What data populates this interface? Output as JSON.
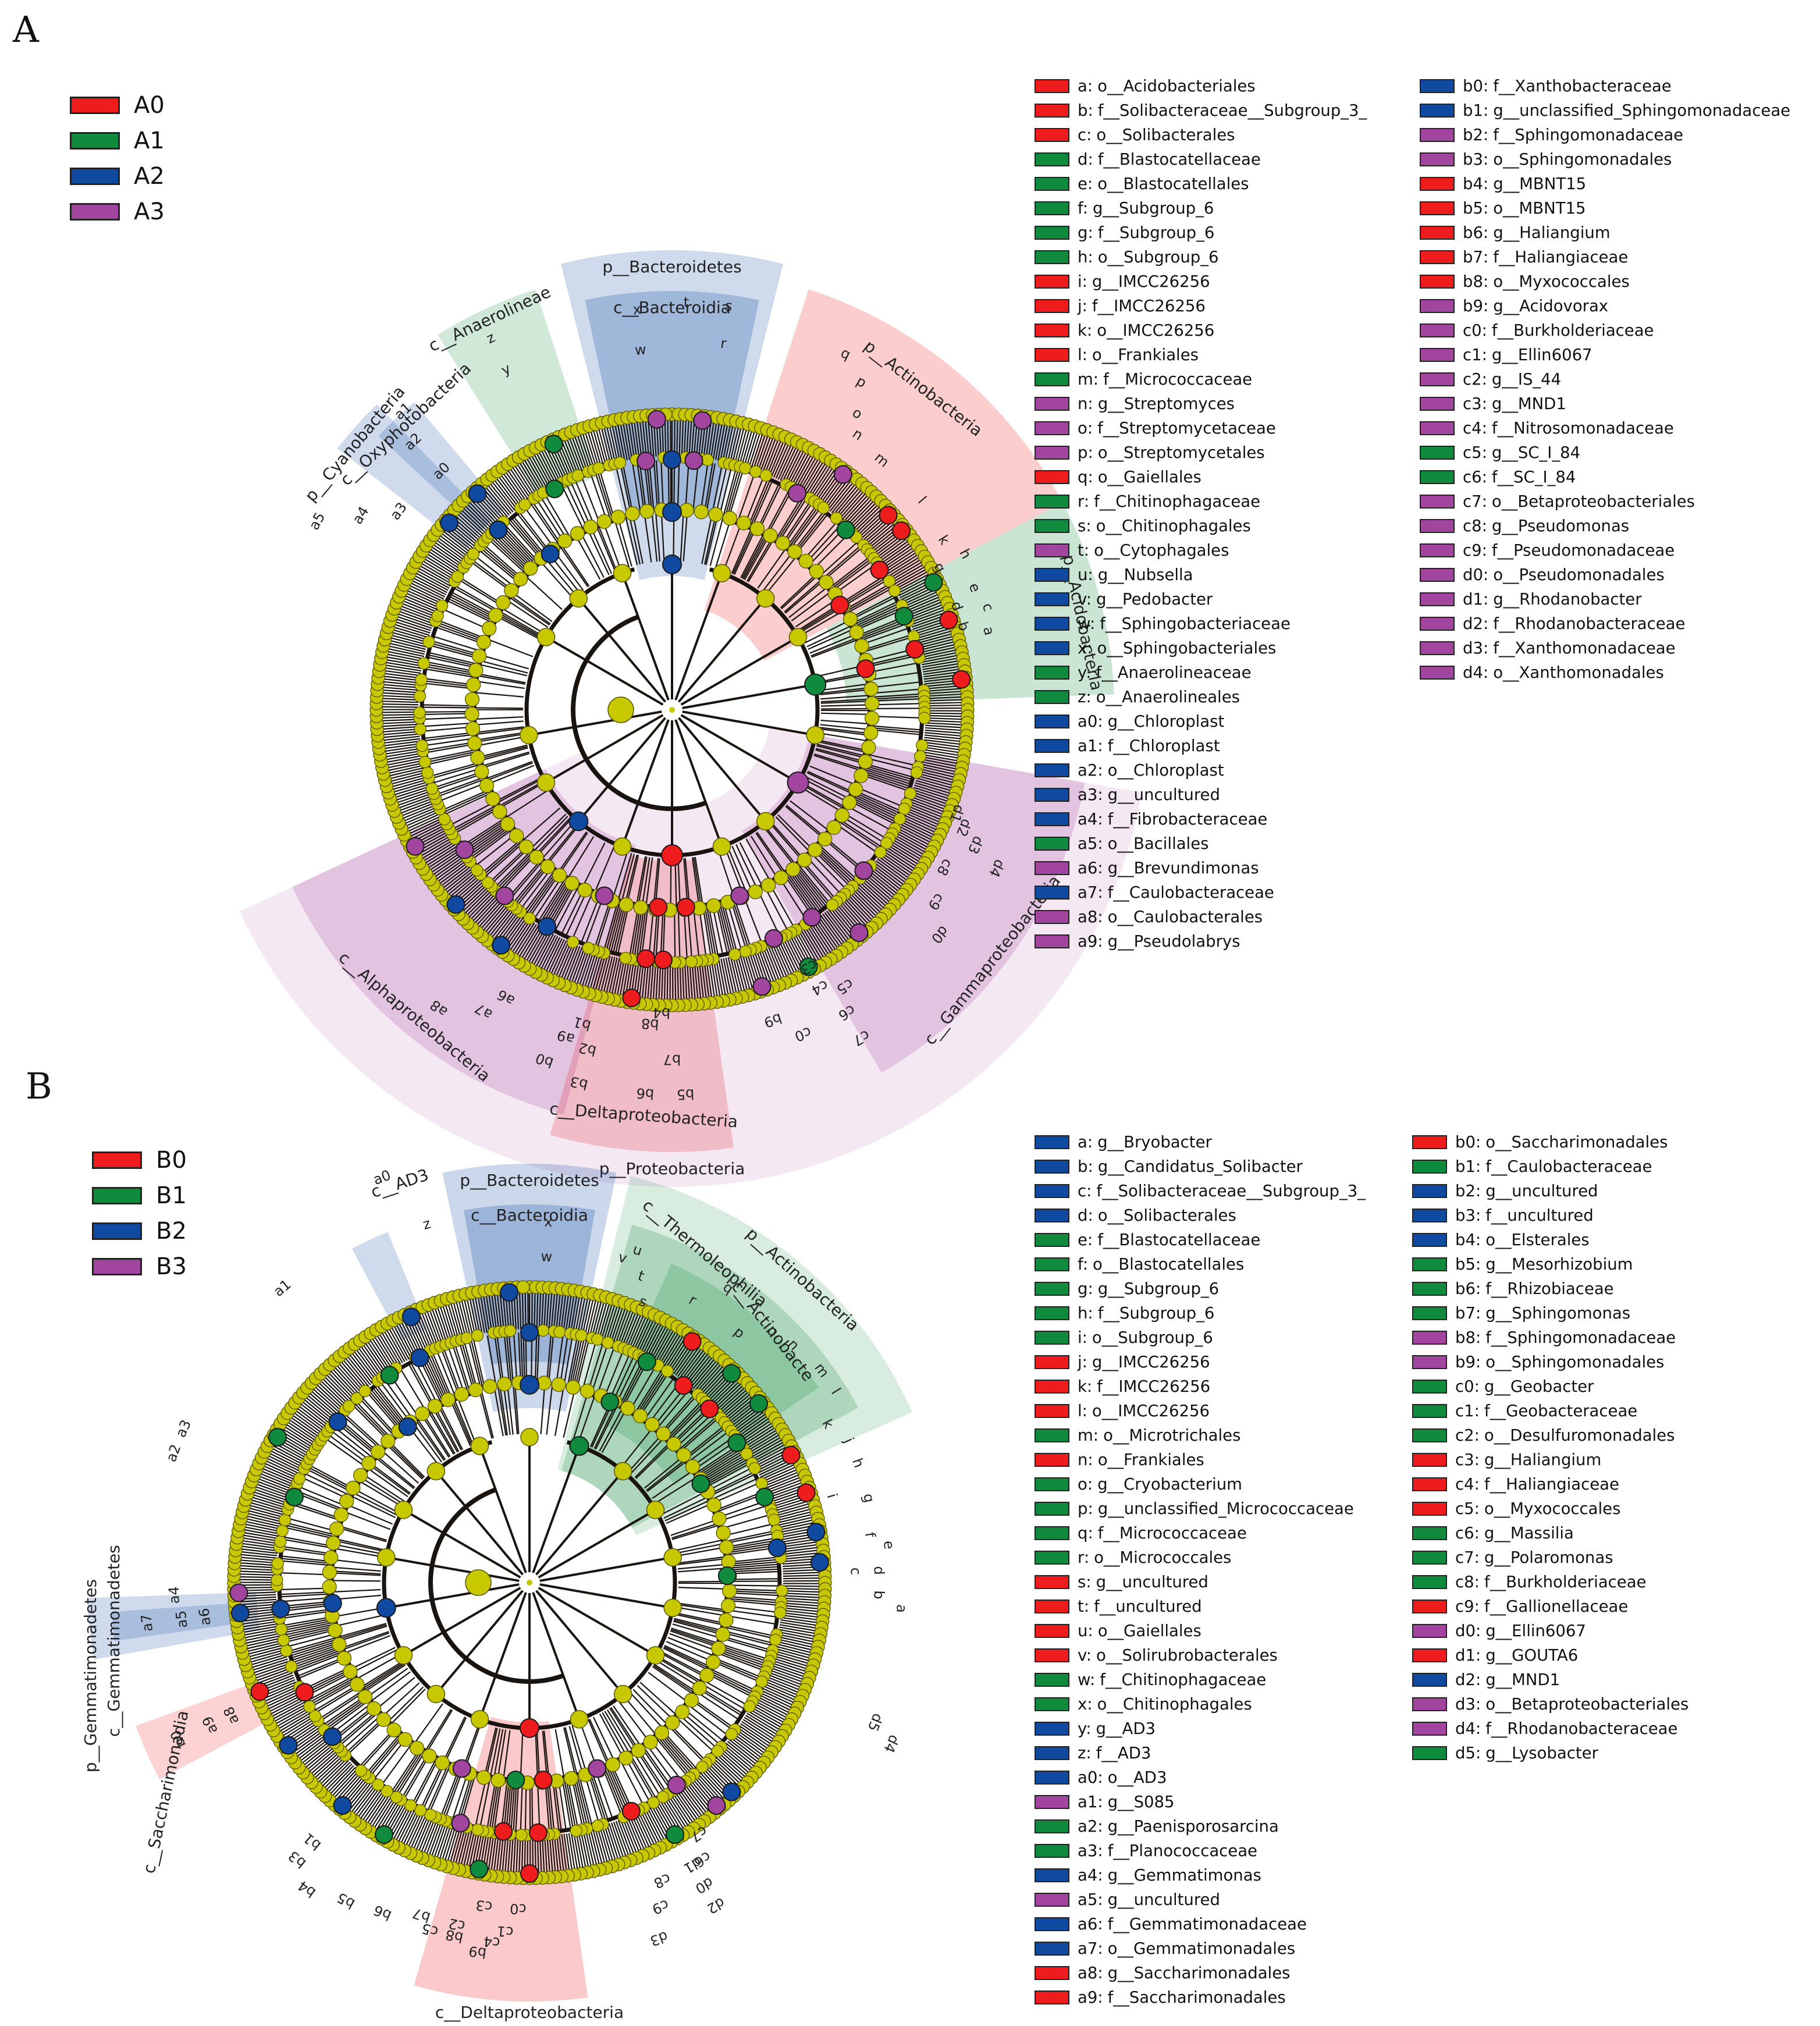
{
  "colors": {
    "A0": "#ee1c1c",
    "A1": "#108a3c",
    "A2": "#104aa0",
    "A3": "#a2459e",
    "node": "#c8c800",
    "branch": "#1a1410"
  },
  "panelA": {
    "letter": "A",
    "groups": [
      {
        "label": "A0",
        "color": "#ee1c1c"
      },
      {
        "label": "A1",
        "color": "#108a3c"
      },
      {
        "label": "A2",
        "color": "#104aa0"
      },
      {
        "label": "A3",
        "color": "#a2459e"
      }
    ],
    "highlights": [
      {
        "label": "p__Bacteroidetes",
        "color": "#104aa0"
      },
      {
        "label": "c__Bacteroidia",
        "color": "#104aa0"
      },
      {
        "label": "c__Anaerolineae",
        "color": "#108a3c"
      },
      {
        "label": "p__Cyanobacteria",
        "color": "#104aa0"
      },
      {
        "label": "c__Oxyphotobacteria",
        "color": "#104aa0"
      },
      {
        "label": "p__Actinobacteria",
        "color": "#ee1c1c"
      },
      {
        "label": "p__Acidobacteria",
        "color": "#108a3c"
      },
      {
        "label": "c__Gammaproteobacteria",
        "color": "#a2459e"
      },
      {
        "label": "c__Alphaproteobacteria",
        "color": "#a2459e"
      },
      {
        "label": "c__Deltaproteobacteria",
        "color": "#ee1c1c"
      },
      {
        "label": "p__Proteobacteria",
        "color": "#a2459e"
      }
    ],
    "tip_labels": [
      "x",
      "w",
      "t",
      "s",
      "r",
      "z",
      "y",
      "a1",
      "a2",
      "a0",
      "a5",
      "a4",
      "a3",
      "q",
      "p",
      "o",
      "n",
      "m",
      "l",
      "k",
      "h",
      "g",
      "e",
      "d",
      "c",
      "b",
      "a",
      "d4",
      "d3",
      "d2",
      "d1",
      "c8",
      "c9",
      "d0",
      "c5",
      "c6",
      "c4",
      "c3",
      "c7",
      "c0",
      "b9",
      "a6",
      "a7",
      "a8",
      "a9",
      "b0",
      "b1",
      "b2",
      "b3",
      "b8",
      "b4",
      "b7",
      "b5",
      "b6"
    ],
    "legend": [
      [
        {
          "code": "a:",
          "name": "o__Acidobacteriales",
          "color": "#ee1c1c"
        },
        {
          "code": "b:",
          "name": "f__Solibacteraceae__Subgroup_3_",
          "color": "#ee1c1c"
        },
        {
          "code": "c:",
          "name": "o__Solibacterales",
          "color": "#ee1c1c"
        },
        {
          "code": "d:",
          "name": "f__Blastocatellaceae",
          "color": "#108a3c"
        },
        {
          "code": "e:",
          "name": "o__Blastocatellales",
          "color": "#108a3c"
        },
        {
          "code": "f:",
          "name": "g__Subgroup_6",
          "color": "#108a3c"
        },
        {
          "code": "g:",
          "name": "f__Subgroup_6",
          "color": "#108a3c"
        },
        {
          "code": "h:",
          "name": "o__Subgroup_6",
          "color": "#108a3c"
        },
        {
          "code": "i:",
          "name": "g__IMCC26256",
          "color": "#ee1c1c"
        },
        {
          "code": "j:",
          "name": "f__IMCC26256",
          "color": "#ee1c1c"
        },
        {
          "code": "k:",
          "name": "o__IMCC26256",
          "color": "#ee1c1c"
        },
        {
          "code": "l:",
          "name": "o__Frankiales",
          "color": "#ee1c1c"
        },
        {
          "code": "m:",
          "name": "f__Micrococcaceae",
          "color": "#108a3c"
        },
        {
          "code": "n:",
          "name": "g__Streptomyces",
          "color": "#a2459e"
        },
        {
          "code": "o:",
          "name": "f__Streptomycetaceae",
          "color": "#a2459e"
        },
        {
          "code": "p:",
          "name": "o__Streptomycetales",
          "color": "#a2459e"
        },
        {
          "code": "q:",
          "name": "o__Gaiellales",
          "color": "#ee1c1c"
        },
        {
          "code": "r:",
          "name": "f__Chitinophagaceae",
          "color": "#108a3c"
        },
        {
          "code": "s:",
          "name": "o__Chitinophagales",
          "color": "#108a3c"
        },
        {
          "code": "t:",
          "name": "o__Cytophagales",
          "color": "#a2459e"
        },
        {
          "code": "u:",
          "name": "g__Nubsella",
          "color": "#104aa0"
        },
        {
          "code": "v:",
          "name": "g__Pedobacter",
          "color": "#104aa0"
        },
        {
          "code": "w:",
          "name": "f__Sphingobacteriaceae",
          "color": "#104aa0"
        },
        {
          "code": "x:",
          "name": "o__Sphingobacteriales",
          "color": "#104aa0"
        },
        {
          "code": "y:",
          "name": "f__Anaerolineaceae",
          "color": "#108a3c"
        },
        {
          "code": "z:",
          "name": "o__Anaerolineales",
          "color": "#108a3c"
        },
        {
          "code": "a0:",
          "name": "g__Chloroplast",
          "color": "#104aa0"
        },
        {
          "code": "a1:",
          "name": "f__Chloroplast",
          "color": "#104aa0"
        },
        {
          "code": "a2:",
          "name": "o__Chloroplast",
          "color": "#104aa0"
        },
        {
          "code": "a3:",
          "name": "g__uncultured",
          "color": "#104aa0"
        },
        {
          "code": "a4:",
          "name": "f__Fibrobacteraceae",
          "color": "#104aa0"
        },
        {
          "code": "a5:",
          "name": "o__Bacillales",
          "color": "#108a3c"
        },
        {
          "code": "a6:",
          "name": "g__Brevundimonas",
          "color": "#a2459e"
        },
        {
          "code": "a7:",
          "name": "f__Caulobacteraceae",
          "color": "#104aa0"
        },
        {
          "code": "a8:",
          "name": "o__Caulobacterales",
          "color": "#a2459e"
        },
        {
          "code": "a9:",
          "name": "g__Pseudolabrys",
          "color": "#a2459e"
        }
      ],
      [
        {
          "code": "b0:",
          "name": "f__Xanthobacteraceae",
          "color": "#104aa0"
        },
        {
          "code": "b1:",
          "name": "g__unclassified_Sphingomonadaceae",
          "color": "#104aa0"
        },
        {
          "code": "b2:",
          "name": "f__Sphingomonadaceae",
          "color": "#a2459e"
        },
        {
          "code": "b3:",
          "name": "o__Sphingomonadales",
          "color": "#a2459e"
        },
        {
          "code": "b4:",
          "name": "g__MBNT15",
          "color": "#ee1c1c"
        },
        {
          "code": "b5:",
          "name": "o__MBNT15",
          "color": "#ee1c1c"
        },
        {
          "code": "b6:",
          "name": "g__Haliangium",
          "color": "#ee1c1c"
        },
        {
          "code": "b7:",
          "name": "f__Haliangiaceae",
          "color": "#ee1c1c"
        },
        {
          "code": "b8:",
          "name": "o__Myxococcales",
          "color": "#ee1c1c"
        },
        {
          "code": "b9:",
          "name": "g__Acidovorax",
          "color": "#a2459e"
        },
        {
          "code": "c0:",
          "name": "f__Burkholderiaceae",
          "color": "#a2459e"
        },
        {
          "code": "c1:",
          "name": "g__Ellin6067",
          "color": "#a2459e"
        },
        {
          "code": "c2:",
          "name": "g__IS_44",
          "color": "#a2459e"
        },
        {
          "code": "c3:",
          "name": "g__MND1",
          "color": "#a2459e"
        },
        {
          "code": "c4:",
          "name": "f__Nitrosomonadaceae",
          "color": "#a2459e"
        },
        {
          "code": "c5:",
          "name": "g__SC_I_84",
          "color": "#108a3c"
        },
        {
          "code": "c6:",
          "name": "f__SC_I_84",
          "color": "#108a3c"
        },
        {
          "code": "c7:",
          "name": "o__Betaproteobacteriales",
          "color": "#a2459e"
        },
        {
          "code": "c8:",
          "name": "g__Pseudomonas",
          "color": "#a2459e"
        },
        {
          "code": "c9:",
          "name": "f__Pseudomonadaceae",
          "color": "#a2459e"
        },
        {
          "code": "d0:",
          "name": "o__Pseudomonadales",
          "color": "#a2459e"
        },
        {
          "code": "d1:",
          "name": "g__Rhodanobacter",
          "color": "#a2459e"
        },
        {
          "code": "d2:",
          "name": "f__Rhodanobacteraceae",
          "color": "#a2459e"
        },
        {
          "code": "d3:",
          "name": "f__Xanthomonadaceae",
          "color": "#a2459e"
        },
        {
          "code": "d4:",
          "name": "o__Xanthomonadales",
          "color": "#a2459e"
        }
      ]
    ]
  },
  "panelB": {
    "letter": "B",
    "groups": [
      {
        "label": "B0",
        "color": "#ee1c1c"
      },
      {
        "label": "B1",
        "color": "#108a3c"
      },
      {
        "label": "B2",
        "color": "#104aa0"
      },
      {
        "label": "B3",
        "color": "#a2459e"
      }
    ],
    "highlights": [
      {
        "label": "p__Bacteroidetes",
        "color": "#104aa0"
      },
      {
        "label": "c__Bacteroidia",
        "color": "#104aa0"
      },
      {
        "label": "c__AD3",
        "color": "#104aa0"
      },
      {
        "label": "c__Thermoleophilia",
        "color": "#108a3c"
      },
      {
        "label": "c__Actinobacte",
        "color": "#108a3c"
      },
      {
        "label": "p__Actinobacteria",
        "color": "#108a3c"
      },
      {
        "label": "p__Gemmatimonadetes",
        "color": "#104aa0"
      },
      {
        "label": "c__Gemmatimonadetes",
        "color": "#104aa0"
      },
      {
        "label": "c__Saccharimonadia",
        "color": "#ee1c1c"
      },
      {
        "label": "c__Deltaproteobacteria",
        "color": "#ee1c1c"
      }
    ],
    "tip_labels": [
      "x",
      "w",
      "a0",
      "z",
      "a1",
      "v",
      "u",
      "t",
      "s",
      "r",
      "q",
      "p",
      "o",
      "n",
      "m",
      "l",
      "k",
      "j",
      "h",
      "i",
      "g",
      "f",
      "e",
      "c",
      "d",
      "b",
      "a",
      "a3",
      "a2",
      "a6",
      "a5",
      "a7",
      "a4",
      "a8",
      "a9",
      "b0",
      "b1",
      "b3",
      "b4",
      "b5",
      "b6",
      "b7",
      "b8",
      "b9",
      "d5",
      "d4",
      "d1",
      "d0",
      "d2",
      "c6",
      "c8",
      "c9",
      "d3",
      "c0",
      "c1",
      "c4",
      "c3",
      "c2",
      "c5",
      "c7"
    ],
    "legend": [
      [
        {
          "code": "a:",
          "name": "g__Bryobacter",
          "color": "#104aa0"
        },
        {
          "code": "b:",
          "name": "g__Candidatus_Solibacter",
          "color": "#104aa0"
        },
        {
          "code": "c:",
          "name": "f__Solibacteraceae__Subgroup_3_",
          "color": "#104aa0"
        },
        {
          "code": "d:",
          "name": "o__Solibacterales",
          "color": "#104aa0"
        },
        {
          "code": "e:",
          "name": "f__Blastocatellaceae",
          "color": "#108a3c"
        },
        {
          "code": "f:",
          "name": "o__Blastocatellales",
          "color": "#108a3c"
        },
        {
          "code": "g:",
          "name": "g__Subgroup_6",
          "color": "#108a3c"
        },
        {
          "code": "h:",
          "name": "f__Subgroup_6",
          "color": "#108a3c"
        },
        {
          "code": "i:",
          "name": "o__Subgroup_6",
          "color": "#108a3c"
        },
        {
          "code": "j:",
          "name": "g__IMCC26256",
          "color": "#ee1c1c"
        },
        {
          "code": "k:",
          "name": "f__IMCC26256",
          "color": "#ee1c1c"
        },
        {
          "code": "l:",
          "name": "o__IMCC26256",
          "color": "#ee1c1c"
        },
        {
          "code": "m:",
          "name": "o__Microtrichales",
          "color": "#108a3c"
        },
        {
          "code": "n:",
          "name": "o__Frankiales",
          "color": "#ee1c1c"
        },
        {
          "code": "o:",
          "name": "g__Cryobacterium",
          "color": "#108a3c"
        },
        {
          "code": "p:",
          "name": "g__unclassified_Micrococcaceae",
          "color": "#108a3c"
        },
        {
          "code": "q:",
          "name": "f__Micrococcaceae",
          "color": "#108a3c"
        },
        {
          "code": "r:",
          "name": "o__Micrococcales",
          "color": "#108a3c"
        },
        {
          "code": "s:",
          "name": "g__uncultured",
          "color": "#ee1c1c"
        },
        {
          "code": "t:",
          "name": "f__uncultured",
          "color": "#ee1c1c"
        },
        {
          "code": "u:",
          "name": "o__Gaiellales",
          "color": "#ee1c1c"
        },
        {
          "code": "v:",
          "name": "o__Solirubrobacterales",
          "color": "#ee1c1c"
        },
        {
          "code": "w:",
          "name": "f__Chitinophagaceae",
          "color": "#108a3c"
        },
        {
          "code": "x:",
          "name": "o__Chitinophagales",
          "color": "#108a3c"
        },
        {
          "code": "y:",
          "name": "g__AD3",
          "color": "#104aa0"
        },
        {
          "code": "z:",
          "name": "f__AD3",
          "color": "#104aa0"
        },
        {
          "code": "a0:",
          "name": "o__AD3",
          "color": "#104aa0"
        },
        {
          "code": "a1:",
          "name": "g__S085",
          "color": "#a2459e"
        },
        {
          "code": "a2:",
          "name": "g__Paenisporosarcina",
          "color": "#108a3c"
        },
        {
          "code": "a3:",
          "name": "f__Planococcaceae",
          "color": "#108a3c"
        },
        {
          "code": "a4:",
          "name": "g__Gemmatimonas",
          "color": "#104aa0"
        },
        {
          "code": "a5:",
          "name": "g__uncultured",
          "color": "#a2459e"
        },
        {
          "code": "a6:",
          "name": "f__Gemmatimonadaceae",
          "color": "#104aa0"
        },
        {
          "code": "a7:",
          "name": "o__Gemmatimonadales",
          "color": "#104aa0"
        },
        {
          "code": "a8:",
          "name": "g__Saccharimonadales",
          "color": "#ee1c1c"
        },
        {
          "code": "a9:",
          "name": "f__Saccharimonadales",
          "color": "#ee1c1c"
        }
      ],
      [
        {
          "code": "b0:",
          "name": "o__Saccharimonadales",
          "color": "#ee1c1c"
        },
        {
          "code": "b1:",
          "name": "f__Caulobacteraceae",
          "color": "#108a3c"
        },
        {
          "code": "b2:",
          "name": "g__uncultured",
          "color": "#104aa0"
        },
        {
          "code": "b3:",
          "name": "f__uncultured",
          "color": "#104aa0"
        },
        {
          "code": "b4:",
          "name": "o__Elsterales",
          "color": "#104aa0"
        },
        {
          "code": "b5:",
          "name": "g__Mesorhizobium",
          "color": "#108a3c"
        },
        {
          "code": "b6:",
          "name": "f__Rhizobiaceae",
          "color": "#108a3c"
        },
        {
          "code": "b7:",
          "name": "g__Sphingomonas",
          "color": "#108a3c"
        },
        {
          "code": "b8:",
          "name": "f__Sphingomonadaceae",
          "color": "#a2459e"
        },
        {
          "code": "b9:",
          "name": "o__Sphingomonadales",
          "color": "#a2459e"
        },
        {
          "code": "c0:",
          "name": "g__Geobacter",
          "color": "#108a3c"
        },
        {
          "code": "c1:",
          "name": "f__Geobacteraceae",
          "color": "#108a3c"
        },
        {
          "code": "c2:",
          "name": "o__Desulfuromonadales",
          "color": "#108a3c"
        },
        {
          "code": "c3:",
          "name": "g__Haliangium",
          "color": "#ee1c1c"
        },
        {
          "code": "c4:",
          "name": "f__Haliangiaceae",
          "color": "#ee1c1c"
        },
        {
          "code": "c5:",
          "name": "o__Myxococcales",
          "color": "#ee1c1c"
        },
        {
          "code": "c6:",
          "name": "g__Massilia",
          "color": "#108a3c"
        },
        {
          "code": "c7:",
          "name": "g__Polaromonas",
          "color": "#108a3c"
        },
        {
          "code": "c8:",
          "name": "f__Burkholderiaceae",
          "color": "#108a3c"
        },
        {
          "code": "c9:",
          "name": "f__Gallionellaceae",
          "color": "#ee1c1c"
        },
        {
          "code": "d0:",
          "name": "g__Ellin6067",
          "color": "#a2459e"
        },
        {
          "code": "d1:",
          "name": "g__GOUTA6",
          "color": "#ee1c1c"
        },
        {
          "code": "d2:",
          "name": "g__MND1",
          "color": "#104aa0"
        },
        {
          "code": "d3:",
          "name": "o__Betaproteobacteriales",
          "color": "#a2459e"
        },
        {
          "code": "d4:",
          "name": "f__Rhodanobacteraceae",
          "color": "#a2459e"
        },
        {
          "code": "d5:",
          "name": "g__Lysobacter",
          "color": "#108a3c"
        }
      ]
    ]
  }
}
